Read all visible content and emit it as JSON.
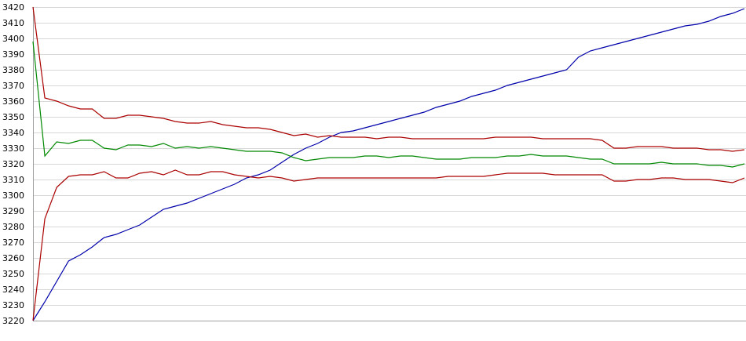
{
  "chart_data": {
    "type": "line",
    "categories": [
      null,
      null,
      null,
      null,
      null,
      null,
      null,
      null,
      null,
      null,
      null,
      null,
      null,
      null,
      null,
      null,
      null,
      null,
      null,
      null,
      null,
      null,
      null,
      null,
      null,
      null,
      null,
      null,
      null,
      null,
      null,
      null,
      null,
      null,
      null,
      null,
      null,
      null,
      null,
      null,
      null,
      null,
      null,
      null,
      null,
      null,
      null,
      null,
      null,
      null,
      null,
      null,
      null,
      null,
      null,
      null,
      null,
      null,
      null,
      null,
      null
    ],
    "series": [
      {
        "color": "#0000aa",
        "values": [
          3220,
          3232,
          3245,
          3258,
          3262,
          3267,
          3273,
          3275,
          3278,
          3281,
          3286,
          3291,
          3293,
          3295,
          3298,
          3301,
          3304,
          3307,
          3311,
          3313,
          3316,
          3321,
          3326,
          3330,
          3333,
          3337,
          3340,
          3341,
          3343,
          3345,
          3347,
          3349,
          3351,
          3353,
          3356,
          3358,
          3360,
          3363,
          3365,
          3367,
          3370,
          3372,
          3374,
          3376,
          3378,
          3380,
          3388,
          3392,
          3394,
          3396,
          3398,
          3400,
          3402,
          3404,
          3406,
          3408,
          3409,
          3411,
          3414,
          3416,
          3419
        ]
      },
      {
        "color": "#aa0000",
        "values": [
          3420,
          3362,
          3360,
          3357,
          3355,
          3355,
          3349,
          3349,
          3351,
          3351,
          3350,
          3349,
          3347,
          3346,
          3346,
          3347,
          3345,
          3344,
          3343,
          3343,
          3342,
          3340,
          3338,
          3339,
          3337,
          3338,
          3337,
          3337,
          3337,
          3336,
          3337,
          3337,
          3336,
          3336,
          3336,
          3336,
          3336,
          3336,
          3336,
          3337,
          3337,
          3337,
          3337,
          3336,
          3336,
          3336,
          3336,
          3336,
          3335,
          3330,
          3330,
          3331,
          3331,
          3331,
          3330,
          3330,
          3330,
          3329,
          3329,
          3328,
          3329
        ]
      },
      {
        "color": "#008800",
        "values": [
          3398,
          3325,
          3334,
          3333,
          3335,
          3335,
          3330,
          3329,
          3332,
          3332,
          3331,
          3333,
          3330,
          3331,
          3330,
          3331,
          3330,
          3329,
          3328,
          3328,
          3328,
          3327,
          3324,
          3322,
          3323,
          3324,
          3324,
          3324,
          3325,
          3325,
          3324,
          3325,
          3325,
          3324,
          3323,
          3323,
          3323,
          3324,
          3324,
          3324,
          3325,
          3325,
          3326,
          3325,
          3325,
          3325,
          3324,
          3323,
          3323,
          3320,
          3320,
          3320,
          3320,
          3321,
          3320,
          3320,
          3320,
          3319,
          3319,
          3318,
          3320
        ]
      },
      {
        "color": "#aa0000",
        "values": [
          3220,
          3285,
          3305,
          3312,
          3313,
          3313,
          3315,
          3311,
          3311,
          3314,
          3315,
          3313,
          3316,
          3313,
          3313,
          3315,
          3315,
          3313,
          3312,
          3311,
          3312,
          3311,
          3309,
          3310,
          3311,
          3311,
          3311,
          3311,
          3311,
          3311,
          3311,
          3311,
          3311,
          3311,
          3311,
          3312,
          3312,
          3312,
          3312,
          3313,
          3314,
          3314,
          3314,
          3314,
          3313,
          3313,
          3313,
          3313,
          3313,
          3309,
          3309,
          3310,
          3310,
          3311,
          3311,
          3310,
          3310,
          3310,
          3309,
          3308,
          3311
        ]
      }
    ],
    "ylim": [
      3220,
      3420
    ],
    "yticks": [
      3220,
      3230,
      3240,
      3250,
      3260,
      3270,
      3280,
      3290,
      3300,
      3310,
      3320,
      3330,
      3340,
      3350,
      3360,
      3370,
      3380,
      3390,
      3400,
      3410,
      3420
    ],
    "grid": true
  }
}
